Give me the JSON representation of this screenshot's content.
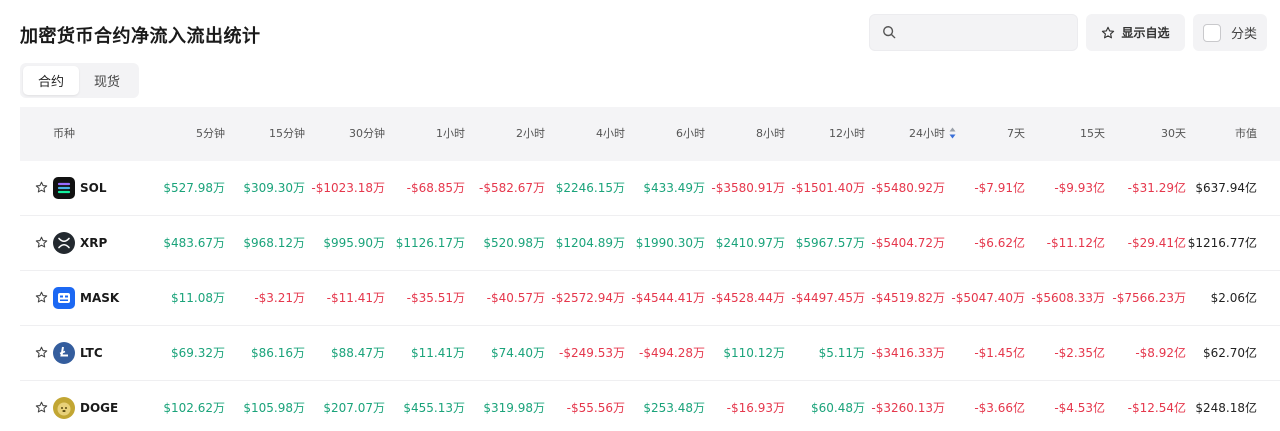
{
  "header": {
    "title": "加密货币合约净流入流出统计",
    "search_placeholder": "",
    "fav_label": "显示自选",
    "category_label": "分类"
  },
  "tabs": [
    {
      "label": "合约",
      "active": true
    },
    {
      "label": "现货",
      "active": false
    }
  ],
  "table": {
    "columns": [
      "币种",
      "5分钟",
      "15分钟",
      "30分钟",
      "1小时",
      "2小时",
      "4小时",
      "6小时",
      "8小时",
      "12小时",
      "24小时",
      "7天",
      "15天",
      "30天",
      "市值"
    ],
    "sorted_column": "24小时",
    "rows": [
      {
        "symbol": "SOL",
        "icon": "sol-logo-icon",
        "values": [
          "$527.98万",
          "$309.30万",
          "-$1023.18万",
          "-$68.85万",
          "-$582.67万",
          "$2246.15万",
          "$433.49万",
          "-$3580.91万",
          "-$1501.40万",
          "-$5480.92万",
          "-$7.91亿",
          "-$9.93亿",
          "-$31.29亿",
          "$637.94亿"
        ]
      },
      {
        "symbol": "XRP",
        "icon": "xrp-logo-icon",
        "values": [
          "$483.67万",
          "$968.12万",
          "$995.90万",
          "$1126.17万",
          "$520.98万",
          "$1204.89万",
          "$1990.30万",
          "$2410.97万",
          "$5967.57万",
          "-$5404.72万",
          "-$6.62亿",
          "-$11.12亿",
          "-$29.41亿",
          "$1216.77亿"
        ]
      },
      {
        "symbol": "MASK",
        "icon": "mask-logo-icon",
        "values": [
          "$11.08万",
          "-$3.21万",
          "-$11.41万",
          "-$35.51万",
          "-$40.57万",
          "-$2572.94万",
          "-$4544.41万",
          "-$4528.44万",
          "-$4497.45万",
          "-$4519.82万",
          "-$5047.40万",
          "-$5608.33万",
          "-$7566.23万",
          "$2.06亿"
        ]
      },
      {
        "symbol": "LTC",
        "icon": "ltc-logo-icon",
        "values": [
          "$69.32万",
          "$86.16万",
          "$88.47万",
          "$11.41万",
          "$74.40万",
          "-$249.53万",
          "-$494.28万",
          "$110.12万",
          "$5.11万",
          "-$3416.33万",
          "-$1.45亿",
          "-$2.35亿",
          "-$8.92亿",
          "$62.70亿"
        ]
      },
      {
        "symbol": "DOGE",
        "icon": "doge-logo-icon",
        "values": [
          "$102.62万",
          "$105.98万",
          "$207.07万",
          "$455.13万",
          "$319.98万",
          "-$55.56万",
          "$253.48万",
          "-$16.93万",
          "$60.48万",
          "-$3260.13万",
          "-$3.66亿",
          "-$4.53亿",
          "-$12.54亿",
          "$248.18亿"
        ]
      }
    ]
  },
  "colors": {
    "positive": "#1aa37a",
    "negative": "#e5374c",
    "header_bg": "#f4f4f6"
  }
}
